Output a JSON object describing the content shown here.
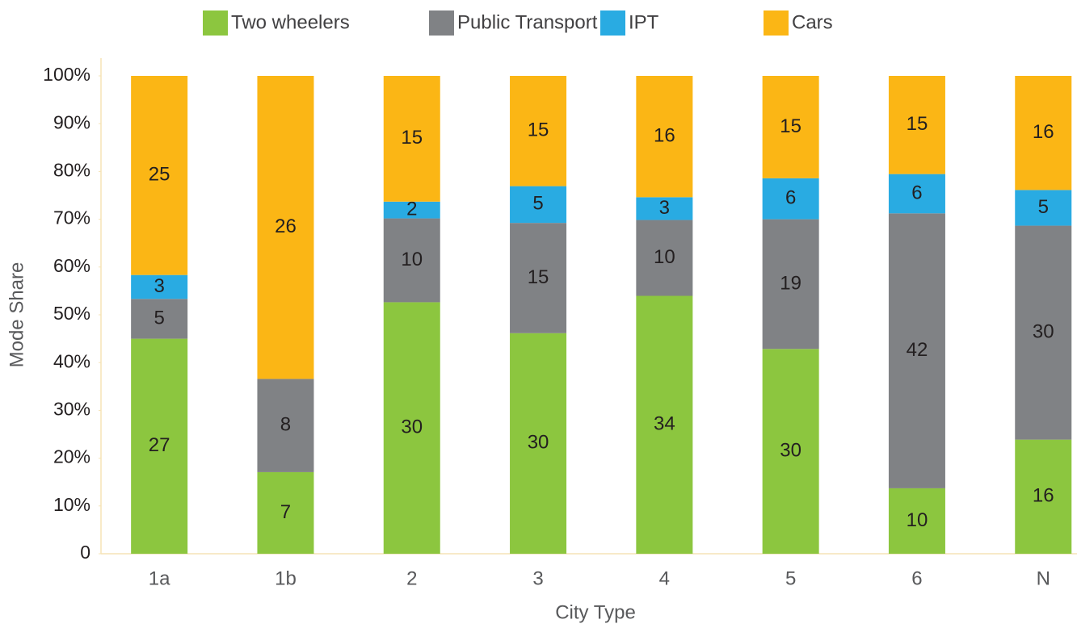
{
  "chart_data": {
    "type": "stacked_bar_100",
    "y_label": "Mode Share",
    "x_label": "City Type",
    "categories": [
      "1a",
      "1b",
      "2",
      "3",
      "4",
      "5",
      "6",
      "N"
    ],
    "series": [
      {
        "name": "Two wheelers",
        "color": "#8cc63f",
        "values": [
          27,
          7,
          30,
          30,
          34,
          30,
          10,
          16
        ]
      },
      {
        "name": "Public Transport",
        "color": "#808285",
        "values": [
          5,
          8,
          10,
          15,
          10,
          19,
          42,
          30
        ]
      },
      {
        "name": "IPT",
        "color": "#29abe2",
        "values": [
          3,
          null,
          2,
          5,
          3,
          6,
          6,
          5
        ]
      },
      {
        "name": "Cars",
        "color": "#fbb615",
        "values": [
          25,
          26,
          15,
          15,
          16,
          15,
          15,
          16
        ]
      }
    ],
    "ylim": [
      0,
      100
    ],
    "yticks": [
      0,
      {
        "value": 10,
        "label": "10%"
      },
      {
        "value": 20,
        "label": "20%"
      },
      {
        "value": 30,
        "label": "30%"
      },
      {
        "value": 40,
        "label": "40%"
      },
      {
        "value": 50,
        "label": "50%"
      },
      {
        "value": 60,
        "label": "60%"
      },
      {
        "value": 70,
        "label": "70%"
      },
      {
        "value": 80,
        "label": "80%"
      },
      {
        "value": 90,
        "label": "90%"
      },
      {
        "value": 100,
        "label": "100%"
      }
    ],
    "legend": "top"
  }
}
